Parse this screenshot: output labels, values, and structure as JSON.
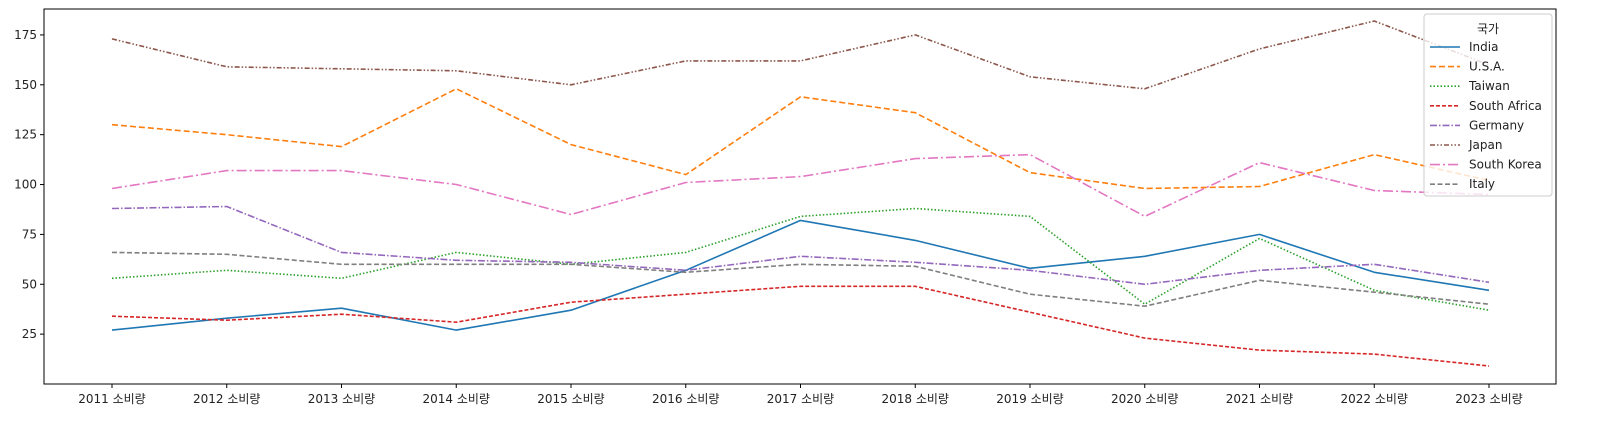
{
  "chart_data": {
    "type": "line",
    "title": "",
    "xlabel": "",
    "ylabel": "",
    "categories": [
      "2011 소비량",
      "2012 소비량",
      "2013 소비량",
      "2014 소비량",
      "2015 소비량",
      "2016 소비량",
      "2017 소비량",
      "2018 소비량",
      "2019 소비량",
      "2020 소비량",
      "2021 소비량",
      "2022 소비량",
      "2023 소비량"
    ],
    "ylim": [
      0,
      188
    ],
    "yticks": [
      25,
      50,
      75,
      100,
      125,
      150,
      175
    ],
    "grid": false,
    "legend": {
      "title": "국가",
      "position": "top-right"
    },
    "series": [
      {
        "name": "India",
        "color": "#1f77b4",
        "dash": "solid",
        "values": [
          27,
          33,
          38,
          27,
          37,
          57,
          82,
          72,
          58,
          64,
          75,
          56,
          47
        ]
      },
      {
        "name": "U.S.A.",
        "color": "#ff7f0e",
        "dash": "dashed",
        "values": [
          130,
          125,
          119,
          148,
          120,
          105,
          144,
          136,
          106,
          98,
          99,
          115,
          102
        ]
      },
      {
        "name": "Taiwan",
        "color": "#2ca02c",
        "dash": "dotted",
        "values": [
          53,
          57,
          53,
          66,
          60,
          66,
          84,
          88,
          84,
          40,
          73,
          47,
          37
        ]
      },
      {
        "name": "South Africa",
        "color": "#d62728",
        "dash": "dense-dashed",
        "values": [
          34,
          32,
          35,
          31,
          41,
          45,
          49,
          49,
          36,
          23,
          17,
          15,
          9
        ]
      },
      {
        "name": "Germany",
        "color": "#9467bd",
        "dash": "dash-dot",
        "values": [
          88,
          89,
          66,
          62,
          61,
          57,
          64,
          61,
          57,
          50,
          57,
          60,
          51
        ]
      },
      {
        "name": "Japan",
        "color": "#8c564b",
        "dash": "dash-dot-dot",
        "values": [
          173,
          159,
          158,
          157,
          150,
          162,
          162,
          175,
          154,
          148,
          168,
          182,
          160
        ]
      },
      {
        "name": "South Korea",
        "color": "#e377c2",
        "dash": "long-dash-dot",
        "values": [
          98,
          107,
          107,
          100,
          85,
          101,
          104,
          113,
          115,
          84,
          111,
          97,
          95
        ]
      },
      {
        "name": "Italy",
        "color": "#7f7f7f",
        "dash": "long-dash",
        "values": [
          66,
          65,
          60,
          60,
          60,
          56,
          60,
          59,
          45,
          39,
          52,
          46,
          40
        ]
      }
    ]
  }
}
